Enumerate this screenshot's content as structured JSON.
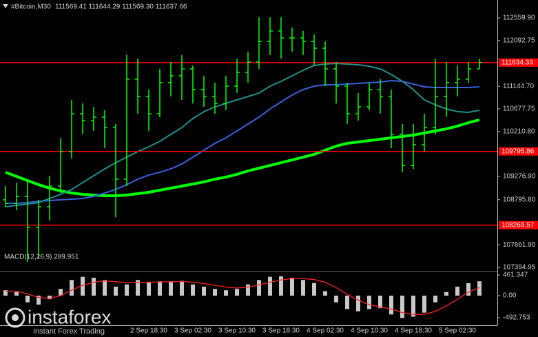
{
  "chart_data": {
    "type": "ohlc",
    "title": "#Bitcoin,M30",
    "quote": "111569.41 111644.29 111569.30 111637.66",
    "bar_color": "#00ff00",
    "categories": [
      null,
      null,
      null,
      null,
      null,
      null,
      null,
      null,
      null,
      null,
      null,
      null,
      null,
      "2 Sep 18:30",
      null,
      null,
      null,
      "3 Sep 02:30",
      null,
      null,
      null,
      "3 Sep 10:30",
      null,
      null,
      null,
      "3 Sep 18:30",
      null,
      null,
      null,
      "4 Sep 02:30",
      null,
      null,
      null,
      "4 Sep 10:30",
      null,
      null,
      null,
      "4 Sep 18:30",
      null,
      null,
      null,
      "5 Sep 02:30",
      null,
      null
    ],
    "open": [
      108793,
      108721,
      108864,
      108222,
      108650,
      109078,
      109792,
      110576,
      110434,
      110505,
      110291,
      109221,
      111290,
      110933,
      110576,
      111219,
      111361,
      111504,
      111076,
      110933,
      110790,
      111147,
      111433,
      111647,
      112075,
      112289,
      112146,
      112146,
      112075,
      111932,
      111504,
      111147,
      110576,
      110719,
      111076,
      110933,
      110148,
      109506,
      109934,
      110291,
      110933,
      111219,
      111290,
      111504
    ],
    "high": [
      109078,
      109150,
      109221,
      108793,
      109292,
      110077,
      110862,
      110790,
      110719,
      110648,
      110362,
      111789,
      111718,
      111076,
      111504,
      111647,
      111789,
      111575,
      111361,
      111219,
      111361,
      111718,
      111861,
      112574,
      112574,
      112574,
      112360,
      112289,
      112218,
      112075,
      111647,
      111219,
      111004,
      111219,
      111290,
      111076,
      110362,
      110362,
      110576,
      111718,
      111647,
      111575,
      111647,
      111718
    ],
    "low": [
      108650,
      108579,
      107508,
      107579,
      108365,
      108935,
      109649,
      110148,
      110220,
      109863,
      108436,
      109078,
      110576,
      110220,
      110505,
      110933,
      110862,
      110790,
      110719,
      110576,
      110648,
      111004,
      111219,
      111504,
      111789,
      111718,
      111861,
      111789,
      111575,
      111147,
      110790,
      110362,
      110434,
      110648,
      110576,
      109863,
      109364,
      109435,
      109792,
      110148,
      110505,
      110933,
      111219,
      111504
    ],
    "close": [
      108721,
      108864,
      108222,
      108650,
      109078,
      109792,
      110576,
      110434,
      110505,
      110291,
      109221,
      111290,
      110933,
      110576,
      111219,
      111361,
      111504,
      111076,
      110933,
      110790,
      111147,
      111433,
      111647,
      112075,
      112289,
      112146,
      112146,
      112075,
      111932,
      111504,
      111147,
      110576,
      110719,
      111076,
      110933,
      110148,
      109506,
      109934,
      110291,
      110933,
      111219,
      111290,
      111504,
      111638
    ],
    "lines": [
      {
        "color": "#00ff00",
        "values": [
          109363,
          109278,
          109192,
          109107,
          109035,
          108978,
          108935,
          108907,
          108893,
          108878,
          108878,
          108893,
          108921,
          108950,
          108992,
          109035,
          109078,
          109121,
          109164,
          109221,
          109264,
          109321,
          109392,
          109449,
          109506,
          109563,
          109620,
          109677,
          109735,
          109820,
          109906,
          109963,
          109991,
          110020,
          110048,
          110077,
          110106,
          110134,
          110177,
          110220,
          110263,
          110320,
          110391,
          110448
        ]
      },
      {
        "color": "#3a5fe0",
        "values": [
          108721,
          108721,
          108736,
          108764,
          108778,
          108793,
          108807,
          108821,
          108864,
          108935,
          109007,
          109107,
          109221,
          109306,
          109364,
          109435,
          109535,
          109677,
          109820,
          109963,
          110077,
          110220,
          110362,
          110505,
          110676,
          110819,
          110962,
          111076,
          111147,
          111176,
          111176,
          111190,
          111204,
          111219,
          111233,
          111261,
          111247,
          111190,
          111133,
          111119,
          111119,
          111119,
          111119,
          111133
        ]
      },
      {
        "color": "#1f8f8f",
        "values": [
          108650,
          108679,
          108707,
          108736,
          108821,
          108907,
          109007,
          109150,
          109292,
          109435,
          109563,
          109677,
          109792,
          109891,
          110006,
          110148,
          110291,
          110477,
          110619,
          110719,
          110790,
          110862,
          110933,
          111004,
          111147,
          111247,
          111361,
          111475,
          111575,
          111604,
          111618,
          111604,
          111590,
          111561,
          111504,
          111390,
          111247,
          111076,
          110862,
          110762,
          110676,
          110619,
          110605,
          110648
        ]
      }
    ],
    "ylim": [
      107337,
      112931
    ],
    "yticks": [
      {
        "value": 112559.9,
        "label": "112559.90"
      },
      112092.75,
      {
        "value": 111144.7,
        "label": "111144.70"
      },
      110677.75,
      {
        "value": 110210.8,
        "label": "110210.80"
      },
      {
        "value": 109276.9,
        "label": "109276.90"
      },
      {
        "value": 108795.8,
        "label": "108795.80"
      },
      {
        "value": 107861.9,
        "label": "107861.90"
      },
      107394.95
    ],
    "levels": [
      {
        "value": 111634.33,
        "color": "#ff0000"
      },
      {
        "value": 109795.86,
        "color": "#ff0000"
      },
      {
        "value": 108269.57,
        "color": "#ff0000"
      }
    ],
    "macd": {
      "label": "MACD(12,26,9) 289.951",
      "histogram_color": "#c8c8c8",
      "signal_color": "#ff2020",
      "histogram": [
        120,
        80,
        -150,
        -200,
        -80,
        150,
        350,
        420,
        400,
        350,
        200,
        250,
        350,
        300,
        320,
        320,
        330,
        250,
        200,
        150,
        120,
        150,
        250,
        350,
        420,
        430,
        400,
        350,
        280,
        100,
        -150,
        -300,
        -350,
        -300,
        -280,
        -420,
        -500,
        -470,
        -380,
        -150,
        80,
        200,
        280,
        320
      ],
      "signal": [
        100,
        100,
        40,
        -40,
        -60,
        0,
        120,
        230,
        300,
        330,
        310,
        290,
        300,
        300,
        305,
        310,
        315,
        300,
        270,
        230,
        190,
        170,
        190,
        240,
        300,
        350,
        380,
        380,
        360,
        300,
        180,
        30,
        -100,
        -200,
        -250,
        -300,
        -380,
        -420,
        -420,
        -350,
        -230,
        -80,
        80,
        180
      ],
      "ylim": [
        -662,
        969
      ],
      "yticks": [
        461.347,
        {
          "value": 0,
          "label": "0.00"
        },
        -492.753
      ]
    },
    "watermark": {
      "brand": "instaforex",
      "tagline": "Instant Forex Trading"
    }
  }
}
